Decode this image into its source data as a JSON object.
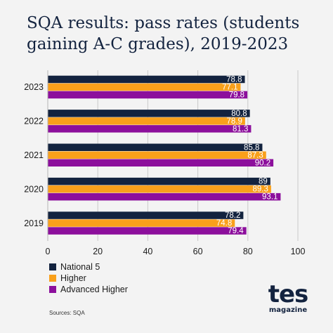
{
  "title_lines": [
    "SQA results: pass rates (students",
    "gaining A-C grades), 2019-2023"
  ],
  "source": "Sources: SQA",
  "logo": {
    "main": "tes",
    "sub": "magazine"
  },
  "colors": {
    "national5": "#13233f",
    "higher": "#f9a01b",
    "advanced": "#8c0f9c"
  },
  "chart_data": {
    "type": "bar",
    "orientation": "horizontal",
    "title": "SQA results: pass rates (students gaining A-C grades), 2019-2023",
    "categories": [
      "2023",
      "2022",
      "2021",
      "2020",
      "2019"
    ],
    "series": [
      {
        "name": "National 5",
        "color": "#13233f",
        "values": [
          78.8,
          80.8,
          85.8,
          89,
          78.2
        ]
      },
      {
        "name": "Higher",
        "color": "#f9a01b",
        "values": [
          77.1,
          78.9,
          87.3,
          89.3,
          74.8
        ]
      },
      {
        "name": "Advanced Higher",
        "color": "#8c0f9c",
        "values": [
          79.8,
          81.3,
          90.2,
          93.1,
          79.4
        ]
      }
    ],
    "value_labels": [
      [
        "78.8",
        "80.8",
        "85.8",
        "89",
        "78.2"
      ],
      [
        "77.1",
        "78.9",
        "87.3",
        "89.3",
        "74.8"
      ],
      [
        "79.8",
        "81.3",
        "90.2",
        "93.1",
        "79.4"
      ]
    ],
    "xlim": [
      0,
      100
    ],
    "xticks": [
      0,
      20,
      40,
      60,
      80,
      100
    ],
    "xtick_labels": [
      "0",
      "20",
      "40",
      "60",
      "80",
      "100"
    ],
    "grid": "vertical",
    "legend": "bottom-left"
  }
}
